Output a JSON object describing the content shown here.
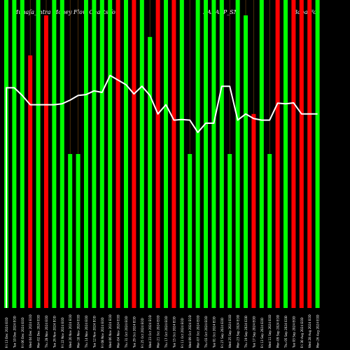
{
  "header": {
    "left": "Munafa_intra Money Flow Charts for",
    "mid": "BABAFP_SM",
    "right": "(Baba Foo"
  },
  "colors": {
    "up": "#00ff00",
    "down": "#ff0000",
    "line": "#ffffff",
    "background": "#000000"
  },
  "chart_data": {
    "type": "bar",
    "ylim": [
      0,
      100
    ],
    "grid": false,
    "categories": [
      "Fri 13 Dec 2024 EOD",
      "Tue 10 Dec 2024 EOD",
      "Fri 06 Dec 2024 EOD",
      "Wed 04 Dec 2024 EOD",
      "Mon 02 Dec 2024 EOD",
      "Thu 28 Nov 2024 EOD",
      "Tue 26 Nov 2024 EOD",
      "Fri 22 Nov 2024 EOD",
      "Wed 20 Nov 2024 EOD",
      "Mon 18 Nov 2024 EOD",
      "Thu 14 Nov 2024 EOD",
      "Tue 12 Nov 2024 EOD",
      "Fri 08 Nov 2024 EOD",
      "Wed 06 Nov 2024 EOD",
      "Mon 04 Nov 2024 EOD",
      "Thu 31 Oct 2024 EOD",
      "Tue 29 Oct 2024 EOD",
      "Fri 25 Oct 2024 EOD",
      "Wed 23 Oct 2024 EOD",
      "Mon 21 Oct 2024 EOD",
      "Thu 17 Oct 2024 EOD",
      "Tue 15 Oct 2024 EOD",
      "Fri 11 Oct 2024 EOD",
      "Wed 09 Oct 2024 EOD",
      "Mon 07 Oct 2024 EOD",
      "Thu 03 Oct 2024 EOD",
      "Tue 01 Oct 2024 EOD",
      "Fri 27 Sep 2024 EOD",
      "Wed 25 Sep 2024 EOD",
      "Mon 23 Sep 2024 EOD",
      "Thu 19 Sep 2024 EOD",
      "Tue 17 Sep 2024 EOD",
      "Fri 13 Sep 2024 EOD",
      "Wed 11 Sep 2024 EOD",
      "Mon 09 Sep 2024 EOD",
      "Thu 05 Sep 2024 EOD",
      "Tue 03 Sep 2024 EOD",
      "Fri 30 Aug 2024 EOD",
      "Wed 28 Aug 2024 EOD",
      "Mon 26 Aug 2024 EOD"
    ],
    "values": [
      100,
      100,
      100,
      82,
      100,
      95,
      100,
      100,
      50,
      50,
      100,
      100,
      100,
      100,
      100,
      100,
      100,
      100,
      88,
      100,
      100,
      100,
      100,
      50,
      100,
      100,
      100,
      100,
      50,
      100,
      95,
      63,
      100,
      50,
      100,
      100,
      100,
      100,
      100,
      100
    ],
    "directions": [
      "up",
      "up",
      "up",
      "down",
      "up",
      "down",
      "up",
      "up",
      "up",
      "up",
      "up",
      "up",
      "up",
      "up",
      "down",
      "up",
      "down",
      "up",
      "up",
      "down",
      "up",
      "down",
      "up",
      "up",
      "up",
      "up",
      "up",
      "up",
      "up",
      "up",
      "up",
      "down",
      "up",
      "up",
      "down",
      "up",
      "down",
      "down",
      "down",
      "up"
    ],
    "line_values": [
      71.5,
      71.5,
      69,
      66,
      66,
      66,
      66,
      66.3,
      67.5,
      69,
      69.3,
      70.5,
      70,
      75.5,
      74,
      72.5,
      69.5,
      72,
      69,
      63,
      66,
      61,
      61.2,
      61,
      57,
      60,
      60,
      72,
      72,
      61,
      63,
      61.5,
      61,
      61,
      66.5,
      66.3,
      66.6,
      63,
      63,
      63
    ]
  }
}
